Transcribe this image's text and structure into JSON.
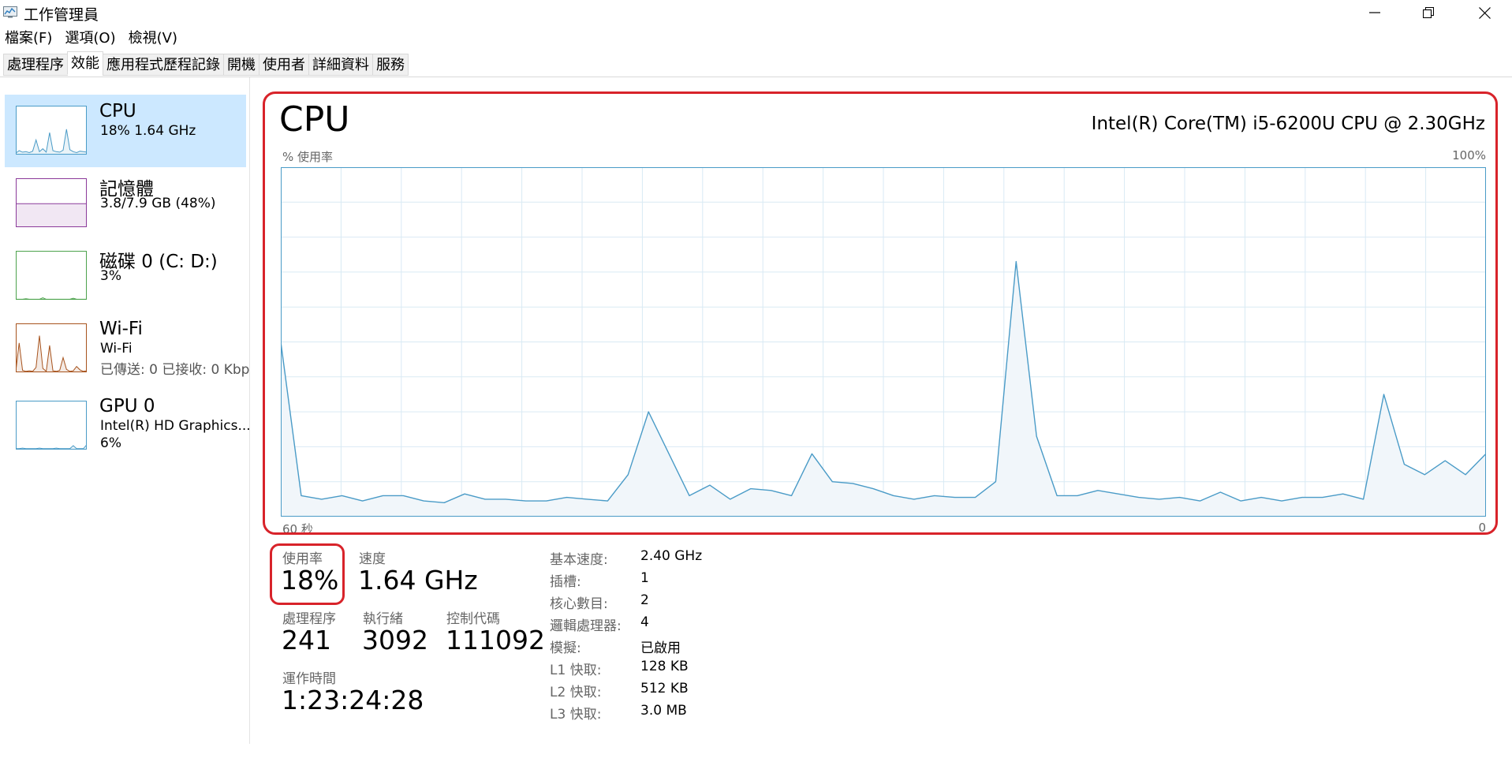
{
  "window": {
    "title": "工作管理員"
  },
  "menu": [
    "檔案(F)",
    "選項(O)",
    "檢視(V)"
  ],
  "tabs": [
    "處理程序",
    "效能",
    "應用程式歷程記錄",
    "開機",
    "使用者",
    "詳細資料",
    "服務"
  ],
  "active_tab": 1,
  "sidebar": {
    "items": [
      {
        "name": "CPU",
        "sub": "18%  1.64 GHz",
        "sub2": "",
        "color": "#4a9bc7",
        "values": [
          3,
          8,
          5,
          6,
          4,
          7,
          30,
          6,
          12,
          5,
          45,
          8,
          6,
          5,
          9,
          52,
          10,
          6,
          4,
          7,
          6,
          5
        ]
      },
      {
        "name": "記憶體",
        "sub": "3.8/7.9 GB (48%)",
        "sub2": "",
        "color": "#8b3a9a",
        "values": [
          48,
          48,
          48,
          48,
          48,
          48,
          48,
          48,
          48,
          48,
          48,
          48,
          48,
          48,
          48,
          48,
          48,
          48,
          48,
          48,
          48,
          48
        ]
      },
      {
        "name": "磁碟 0 (C: D:)",
        "sub": "3%",
        "sub2": "",
        "color": "#4ca24c",
        "values": [
          1,
          1,
          1,
          2,
          1,
          1,
          1,
          1,
          4,
          1,
          1,
          1,
          1,
          1,
          1,
          1,
          1,
          3,
          1,
          1,
          1,
          1
        ]
      },
      {
        "name": "Wi-Fi",
        "sub": "Wi-Fi",
        "sub2": "已傳送: 0 已接收: 0 Kbps",
        "color": "#a7531d",
        "values": [
          2,
          60,
          4,
          2,
          3,
          2,
          10,
          75,
          8,
          2,
          55,
          3,
          2,
          4,
          30,
          6,
          2,
          3,
          12,
          5,
          2,
          3
        ]
      },
      {
        "name": "GPU 0",
        "sub": "Intel(R) HD Graphics...",
        "sub2": "6%",
        "color": "#4a9bc7",
        "values": [
          2,
          2,
          3,
          2,
          2,
          2,
          2,
          3,
          2,
          2,
          2,
          2,
          3,
          2,
          2,
          2,
          2,
          8,
          2,
          2,
          2,
          10
        ]
      }
    ]
  },
  "panel": {
    "title": "CPU",
    "model": "Intel(R) Core(TM) i5-6200U CPU @ 2.30GHz",
    "y_label": "% 使用率",
    "y_max_label": "100%",
    "x_left_label": "60 秒",
    "x_right_label": "0"
  },
  "chart_data": {
    "type": "area",
    "x_range": [
      60,
      0
    ],
    "ylim": [
      0,
      100
    ],
    "grid": true,
    "series": [
      {
        "values": [
          50,
          6,
          5,
          6,
          4.5,
          6,
          6,
          4.5,
          4,
          6.5,
          5,
          5,
          4.5,
          4.5,
          5.5,
          5,
          4.5,
          12,
          30,
          18,
          6,
          9,
          5,
          8,
          7.5,
          6,
          18,
          10,
          9.5,
          8,
          6,
          5,
          6,
          5.5,
          5.5,
          10,
          73,
          23,
          6,
          6,
          7.5,
          6.5,
          5.5,
          5,
          5.5,
          4.5,
          7,
          4.5,
          5.5,
          4.5,
          5.5,
          5.5,
          6.5,
          5,
          35,
          15,
          12,
          16,
          12,
          18
        ]
      }
    ]
  },
  "stats": {
    "usage": {
      "label": "使用率",
      "value": "18%"
    },
    "speed": {
      "label": "速度",
      "value": "1.64 GHz"
    },
    "processes": {
      "label": "處理程序",
      "value": "241"
    },
    "threads": {
      "label": "執行緒",
      "value": "3092"
    },
    "handles": {
      "label": "控制代碼",
      "value": "111092"
    },
    "uptime": {
      "label": "運作時間",
      "value": "1:23:24:28"
    }
  },
  "specs": [
    {
      "label": "基本速度:",
      "value": "2.40 GHz"
    },
    {
      "label": "插槽:",
      "value": "1"
    },
    {
      "label": "核心數目:",
      "value": "2"
    },
    {
      "label": "邏輯處理器:",
      "value": "4"
    },
    {
      "label": "模擬:",
      "value": "已啟用"
    },
    {
      "label": "L1 快取:",
      "value": "128 KB"
    },
    {
      "label": "L2 快取:",
      "value": "512 KB"
    },
    {
      "label": "L3 快取:",
      "value": "3.0 MB"
    }
  ],
  "colors": {
    "cpu_line": "#4a9bc7",
    "cpu_fill": "#f1f6fa",
    "grid": "#d9eaf4",
    "selection": "#cce8ff",
    "highlight": "#d8232a"
  }
}
